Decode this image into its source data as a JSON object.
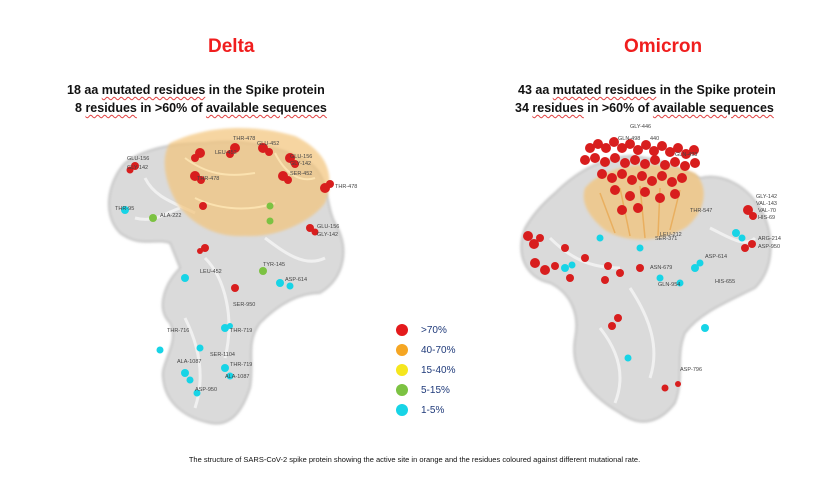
{
  "delta": {
    "title": "Delta",
    "line1_pre": "18 aa ",
    "line1_link": "mutated residues",
    "line1_post": " in the Spike protein",
    "line2_pre": "8 ",
    "line2_link": "residues",
    "line2_post": " in >60% of ",
    "line2_link2": "available sequences",
    "labels": [
      "GLU-156",
      "GLY-142",
      "LEU-452",
      "THR-478",
      "GLU-156",
      "GLY-142",
      "SER-452",
      "THR-478",
      "THR-95",
      "ALA-222",
      "GLU-156",
      "GLY-142",
      "TYR-145",
      "LEU-452",
      "THR-478",
      "SER-950",
      "ASP-614",
      "THR-716",
      "ALA-1087",
      "THR-719",
      "SER-1104",
      "ASP-950"
    ]
  },
  "omicron": {
    "title": "Omicron",
    "line1_pre": "43 aa ",
    "line1_link": "mutated residues",
    "line1_post": " in the Spike protein",
    "line2_pre": "34 ",
    "line2_link": "residues",
    "line2_post": " in >60% of ",
    "line2_link2": "available sequences",
    "labels": [
      "GLY-446",
      "GLN-498",
      "GLN-493",
      "THR-547",
      "VAL-70",
      "HIS-69",
      "ARG-214",
      "ASP-614",
      "HIS-655",
      "ASN-679",
      "GLN-954",
      "ASP-796",
      "LEU-981"
    ]
  },
  "legend": [
    {
      "label": ">70%",
      "color": "#e41a1c"
    },
    {
      "label": "40-70%",
      "color": "#f5a623"
    },
    {
      "label": "15-40%",
      "color": "#f5e61e"
    },
    {
      "label": "5-15%",
      "color": "#7cc242"
    },
    {
      "label": "1-5%",
      "color": "#17d4e6"
    }
  ],
  "caption": "The structure of SARS-CoV-2 spike protein showing the active site in orange and the residues coloured against different mutational rate."
}
